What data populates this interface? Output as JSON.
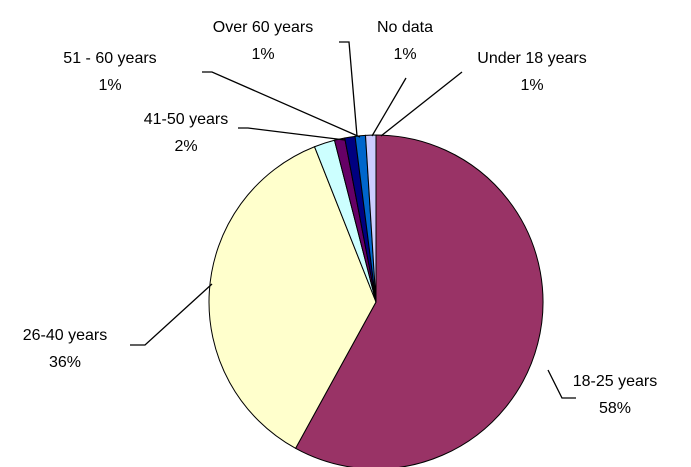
{
  "chart_data": {
    "type": "pie",
    "title": "",
    "legend": "none",
    "slices": [
      {
        "label": "18-25 years",
        "value": 58,
        "percent_text": "58%",
        "color": "#993366"
      },
      {
        "label": "26-40 years",
        "value": 36,
        "percent_text": "36%",
        "color": "#FFFFCC"
      },
      {
        "label": "41-50 years",
        "value": 2,
        "percent_text": "2%",
        "color": "#CCFFFF"
      },
      {
        "label": "51 - 60 years",
        "value": 1,
        "percent_text": "1%",
        "color": "#660066"
      },
      {
        "label": "Over 60 years",
        "value": 1,
        "percent_text": "1%",
        "color": "#000080"
      },
      {
        "label": "No data",
        "value": 1,
        "percent_text": "1%",
        "color": "#0066CC"
      },
      {
        "label": "Under 18 years",
        "value": 1,
        "percent_text": "1%",
        "color": "#CCCCFF"
      }
    ]
  }
}
